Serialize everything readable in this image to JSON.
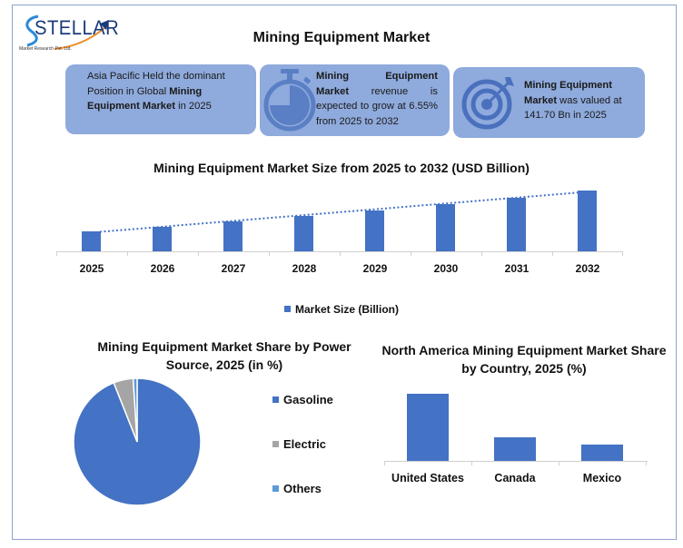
{
  "logo": {
    "name": "STELLAR",
    "subtitle": "Market Research Pvt. Ltd."
  },
  "title": "Mining Equipment Market",
  "cards": [
    {
      "icon": "globe-region",
      "text_parts": [
        {
          "t": "Asia Pacific Held the dominant Position in Global ",
          "b": false
        },
        {
          "t": "Mining Equipment Market",
          "b": true
        },
        {
          "t": " in 2025",
          "b": false
        }
      ]
    },
    {
      "icon": "stopwatch-icon",
      "text_parts": [
        {
          "t": "Mining Equipment Market",
          "b": true
        },
        {
          "t": " revenue is expected to grow at 6.55% from 2025 to 2032",
          "b": false
        }
      ]
    },
    {
      "icon": "target-icon",
      "text_parts": [
        {
          "t": "Mining Equipment Market",
          "b": true
        },
        {
          "t": " was valued at 141.70 Bn in 2025",
          "b": false
        }
      ]
    }
  ],
  "colors": {
    "bar": "#4472c4",
    "card": "#8faadc",
    "icon": "#5a7fc4",
    "gasoline": "#4472c4",
    "electric": "#a5a5a5",
    "others": "#5b9bd5"
  },
  "chart_data": [
    {
      "type": "bar",
      "title": "Mining Equipment Market Size from 2025 to 2032 (USD Billion)",
      "categories": [
        "2025",
        "2026",
        "2027",
        "2028",
        "2029",
        "2030",
        "2031",
        "2032"
      ],
      "series": [
        {
          "name": "Market Size (Billion)",
          "values": [
            141.7,
            151.0,
            160.9,
            171.4,
            182.6,
            194.6,
            207.4,
            221.0
          ]
        }
      ],
      "trendline": "linear dotted",
      "xlabel": "",
      "ylabel": "",
      "y_axis_visible": false,
      "grid": false,
      "legend_position": "bottom"
    },
    {
      "type": "pie",
      "title": "Mining Equipment Market Share by Power Source, 2025 (in %)",
      "categories": [
        "Gasoline",
        "Electric",
        "Others"
      ],
      "values": [
        94,
        5,
        1
      ],
      "legend_position": "right"
    },
    {
      "type": "bar",
      "title": "North America Mining Equipment Market Share by Country, 2025 (%)",
      "categories": [
        "United States",
        "Canada",
        "Mexico"
      ],
      "values": [
        63,
        22,
        15
      ],
      "xlabel": "",
      "ylabel": "",
      "y_axis_visible": false,
      "grid": false
    }
  ],
  "bar_chart": {
    "title": "Mining Equipment Market Size from 2025 to 2032 (USD Billion)",
    "legend": "Market Size (Billion)",
    "labels": [
      "2025",
      "2026",
      "2027",
      "2028",
      "2029",
      "2030",
      "2031",
      "2032"
    ]
  },
  "pie_chart": {
    "title": "Mining Equipment Market Share by Power Source, 2025 (in %)",
    "legend": [
      "Gasoline",
      "Electric",
      "Others"
    ]
  },
  "na_chart": {
    "title": "North America Mining Equipment Market Share by Country, 2025 (%)",
    "labels": [
      "United States",
      "Canada",
      "Mexico"
    ]
  }
}
